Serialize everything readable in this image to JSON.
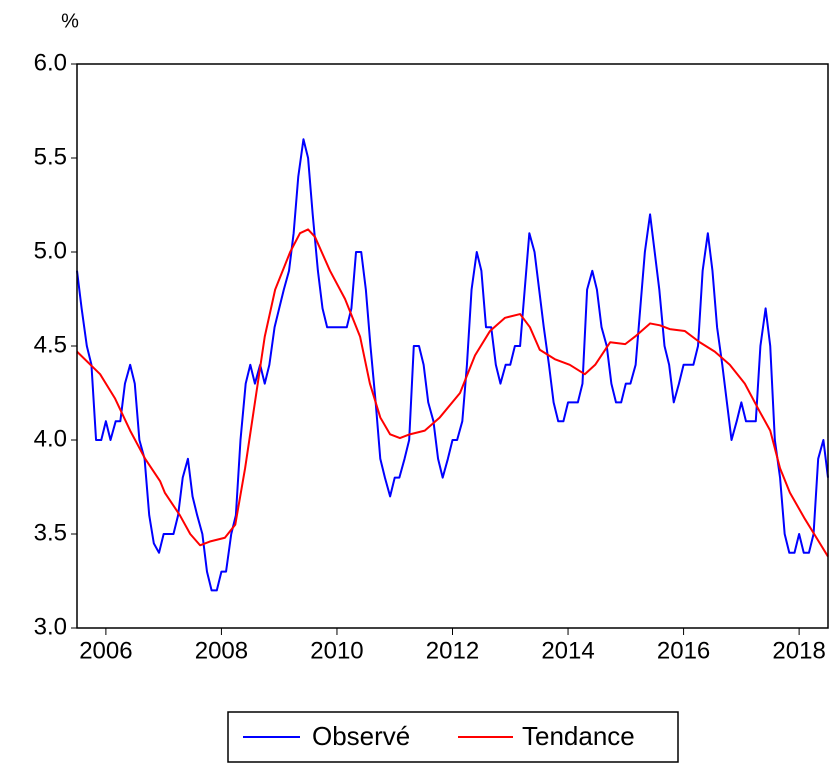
{
  "chart_data": {
    "type": "line",
    "ylabel": "%",
    "xlim": [
      2005.5,
      2018.5
    ],
    "ylim": [
      3.0,
      6.0
    ],
    "xticks": [
      2006,
      2008,
      2010,
      2012,
      2014,
      2016,
      2018
    ],
    "yticks": [
      {
        "value": 3.0,
        "label": "3.0"
      },
      3.5,
      {
        "value": 4.0,
        "label": "4.0"
      },
      4.5,
      {
        "value": 5.0,
        "label": "5.0"
      },
      5.5,
      {
        "value": 6.0,
        "label": "6.0"
      }
    ],
    "legend": "bottom",
    "x": [
      2005.5,
      2005.58,
      2005.67,
      2005.75,
      2005.83,
      2005.92,
      2006,
      2006.08,
      2006.17,
      2006.25,
      2006.33,
      2006.42,
      2006.5,
      2006.58,
      2006.67,
      2006.75,
      2006.83,
      2006.92,
      2007,
      2007.08,
      2007.17,
      2007.25,
      2007.33,
      2007.42,
      2007.5,
      2007.58,
      2007.67,
      2007.75,
      2007.83,
      2007.92,
      2008,
      2008.08,
      2008.17,
      2008.25,
      2008.33,
      2008.42,
      2008.5,
      2008.58,
      2008.67,
      2008.75,
      2008.83,
      2008.92,
      2009,
      2009.08,
      2009.17,
      2009.25,
      2009.33,
      2009.42,
      2009.5,
      2009.58,
      2009.67,
      2009.75,
      2009.83,
      2009.92,
      2010,
      2010.08,
      2010.17,
      2010.25,
      2010.33,
      2010.42,
      2010.5,
      2010.58,
      2010.67,
      2010.75,
      2010.83,
      2010.92,
      2011,
      2011.08,
      2011.17,
      2011.25,
      2011.33,
      2011.42,
      2011.5,
      2011.58,
      2011.67,
      2011.75,
      2011.83,
      2011.92,
      2012,
      2012.08,
      2012.17,
      2012.25,
      2012.33,
      2012.42,
      2012.5,
      2012.58,
      2012.67,
      2012.75,
      2012.83,
      2012.92,
      2013,
      2013.08,
      2013.17,
      2013.25,
      2013.33,
      2013.42,
      2013.5,
      2013.58,
      2013.67,
      2013.75,
      2013.83,
      2013.92,
      2014,
      2014.08,
      2014.17,
      2014.25,
      2014.33,
      2014.42,
      2014.5,
      2014.58,
      2014.67,
      2014.75,
      2014.83,
      2014.92,
      2015,
      2015.08,
      2015.17,
      2015.25,
      2015.33,
      2015.42,
      2015.5,
      2015.58,
      2015.67,
      2015.75,
      2015.83,
      2015.92,
      2016,
      2016.08,
      2016.17,
      2016.25,
      2016.33,
      2016.42,
      2016.5,
      2016.58,
      2016.67,
      2016.75,
      2016.83,
      2016.92,
      2017,
      2017.08,
      2017.17,
      2017.25,
      2017.33,
      2017.42,
      2017.5,
      2017.58,
      2017.67,
      2017.75,
      2017.83,
      2017.92,
      2018,
      2018.08,
      2018.17,
      2018.25,
      2018.33,
      2018.42,
      2018.5
    ],
    "series": [
      {
        "name": "Observé",
        "color": "#0000ff",
        "values": [
          4.9,
          4.7,
          4.5,
          4.4,
          4.0,
          4.0,
          4.1,
          4.0,
          4.1,
          4.1,
          4.3,
          4.4,
          4.3,
          4.0,
          3.9,
          3.6,
          3.45,
          3.4,
          3.5,
          3.5,
          3.5,
          3.6,
          3.8,
          3.9,
          3.7,
          3.6,
          3.5,
          3.3,
          3.2,
          3.2,
          3.3,
          3.3,
          3.5,
          3.6,
          4.0,
          4.3,
          4.4,
          4.3,
          4.4,
          4.3,
          4.4,
          4.6,
          4.7,
          4.8,
          4.9,
          5.1,
          5.4,
          5.6,
          5.5,
          5.2,
          4.9,
          4.7,
          4.6,
          4.6,
          4.6,
          4.6,
          4.6,
          4.7,
          5.0,
          5.0,
          4.8,
          4.5,
          4.2,
          3.9,
          3.8,
          3.7,
          3.8,
          3.8,
          3.9,
          4.0,
          4.5,
          4.5,
          4.4,
          4.2,
          4.1,
          3.9,
          3.8,
          3.9,
          4.0,
          4.0,
          4.1,
          4.4,
          4.8,
          5.0,
          4.9,
          4.6,
          4.6,
          4.4,
          4.3,
          4.4,
          4.4,
          4.5,
          4.5,
          4.8,
          5.1,
          5.0,
          4.8,
          4.6,
          4.4,
          4.2,
          4.1,
          4.1,
          4.2,
          4.2,
          4.2,
          4.3,
          4.8,
          4.9,
          4.8,
          4.6,
          4.5,
          4.3,
          4.2,
          4.2,
          4.3,
          4.3,
          4.4,
          4.7,
          5.0,
          5.2,
          5.0,
          4.8,
          4.5,
          4.4,
          4.2,
          4.3,
          4.4,
          4.4,
          4.4,
          4.5,
          4.9,
          5.1,
          4.9,
          4.6,
          4.4,
          4.2,
          4.0,
          4.1,
          4.2,
          4.1,
          4.1,
          4.1,
          4.5,
          4.7,
          4.5,
          4.0,
          3.8,
          3.5,
          3.4,
          3.4,
          3.5,
          3.4,
          3.4,
          3.5,
          3.9,
          4.0,
          3.8
        ]
      },
      {
        "name": "Tendance",
        "color": "#ff0000",
        "x": [
          2005.5,
          2005.9,
          2006.16,
          2006.42,
          2006.68,
          2006.94,
          2007.02,
          2007.28,
          2007.46,
          2007.63,
          2007.8,
          2008.06,
          2008.24,
          2008.41,
          2008.58,
          2008.75,
          2008.93,
          2009.19,
          2009.36,
          2009.5,
          2009.62,
          2009.88,
          2010.14,
          2010.4,
          2010.57,
          2010.75,
          2010.92,
          2011.09,
          2011.26,
          2011.52,
          2011.78,
          2012.13,
          2012.39,
          2012.65,
          2012.91,
          2013.17,
          2013.34,
          2013.51,
          2013.77,
          2014.03,
          2014.29,
          2014.47,
          2014.73,
          2014.99,
          2015.16,
          2015.42,
          2015.59,
          2015.76,
          2016.02,
          2016.28,
          2016.54,
          2016.8,
          2017.06,
          2017.32,
          2017.5,
          2017.67,
          2017.84,
          2018.1,
          2018.36,
          2018.5
        ],
        "values": [
          4.47,
          4.35,
          4.22,
          4.05,
          3.9,
          3.78,
          3.72,
          3.6,
          3.5,
          3.44,
          3.46,
          3.48,
          3.55,
          3.85,
          4.2,
          4.55,
          4.8,
          5.0,
          5.1,
          5.12,
          5.08,
          4.9,
          4.75,
          4.55,
          4.3,
          4.12,
          4.03,
          4.01,
          4.03,
          4.05,
          4.12,
          4.25,
          4.45,
          4.58,
          4.65,
          4.67,
          4.6,
          4.48,
          4.43,
          4.4,
          4.35,
          4.4,
          4.52,
          4.51,
          4.55,
          4.62,
          4.61,
          4.59,
          4.58,
          4.52,
          4.47,
          4.4,
          4.3,
          4.15,
          4.05,
          3.85,
          3.72,
          3.58,
          3.45,
          3.38
        ]
      }
    ]
  }
}
